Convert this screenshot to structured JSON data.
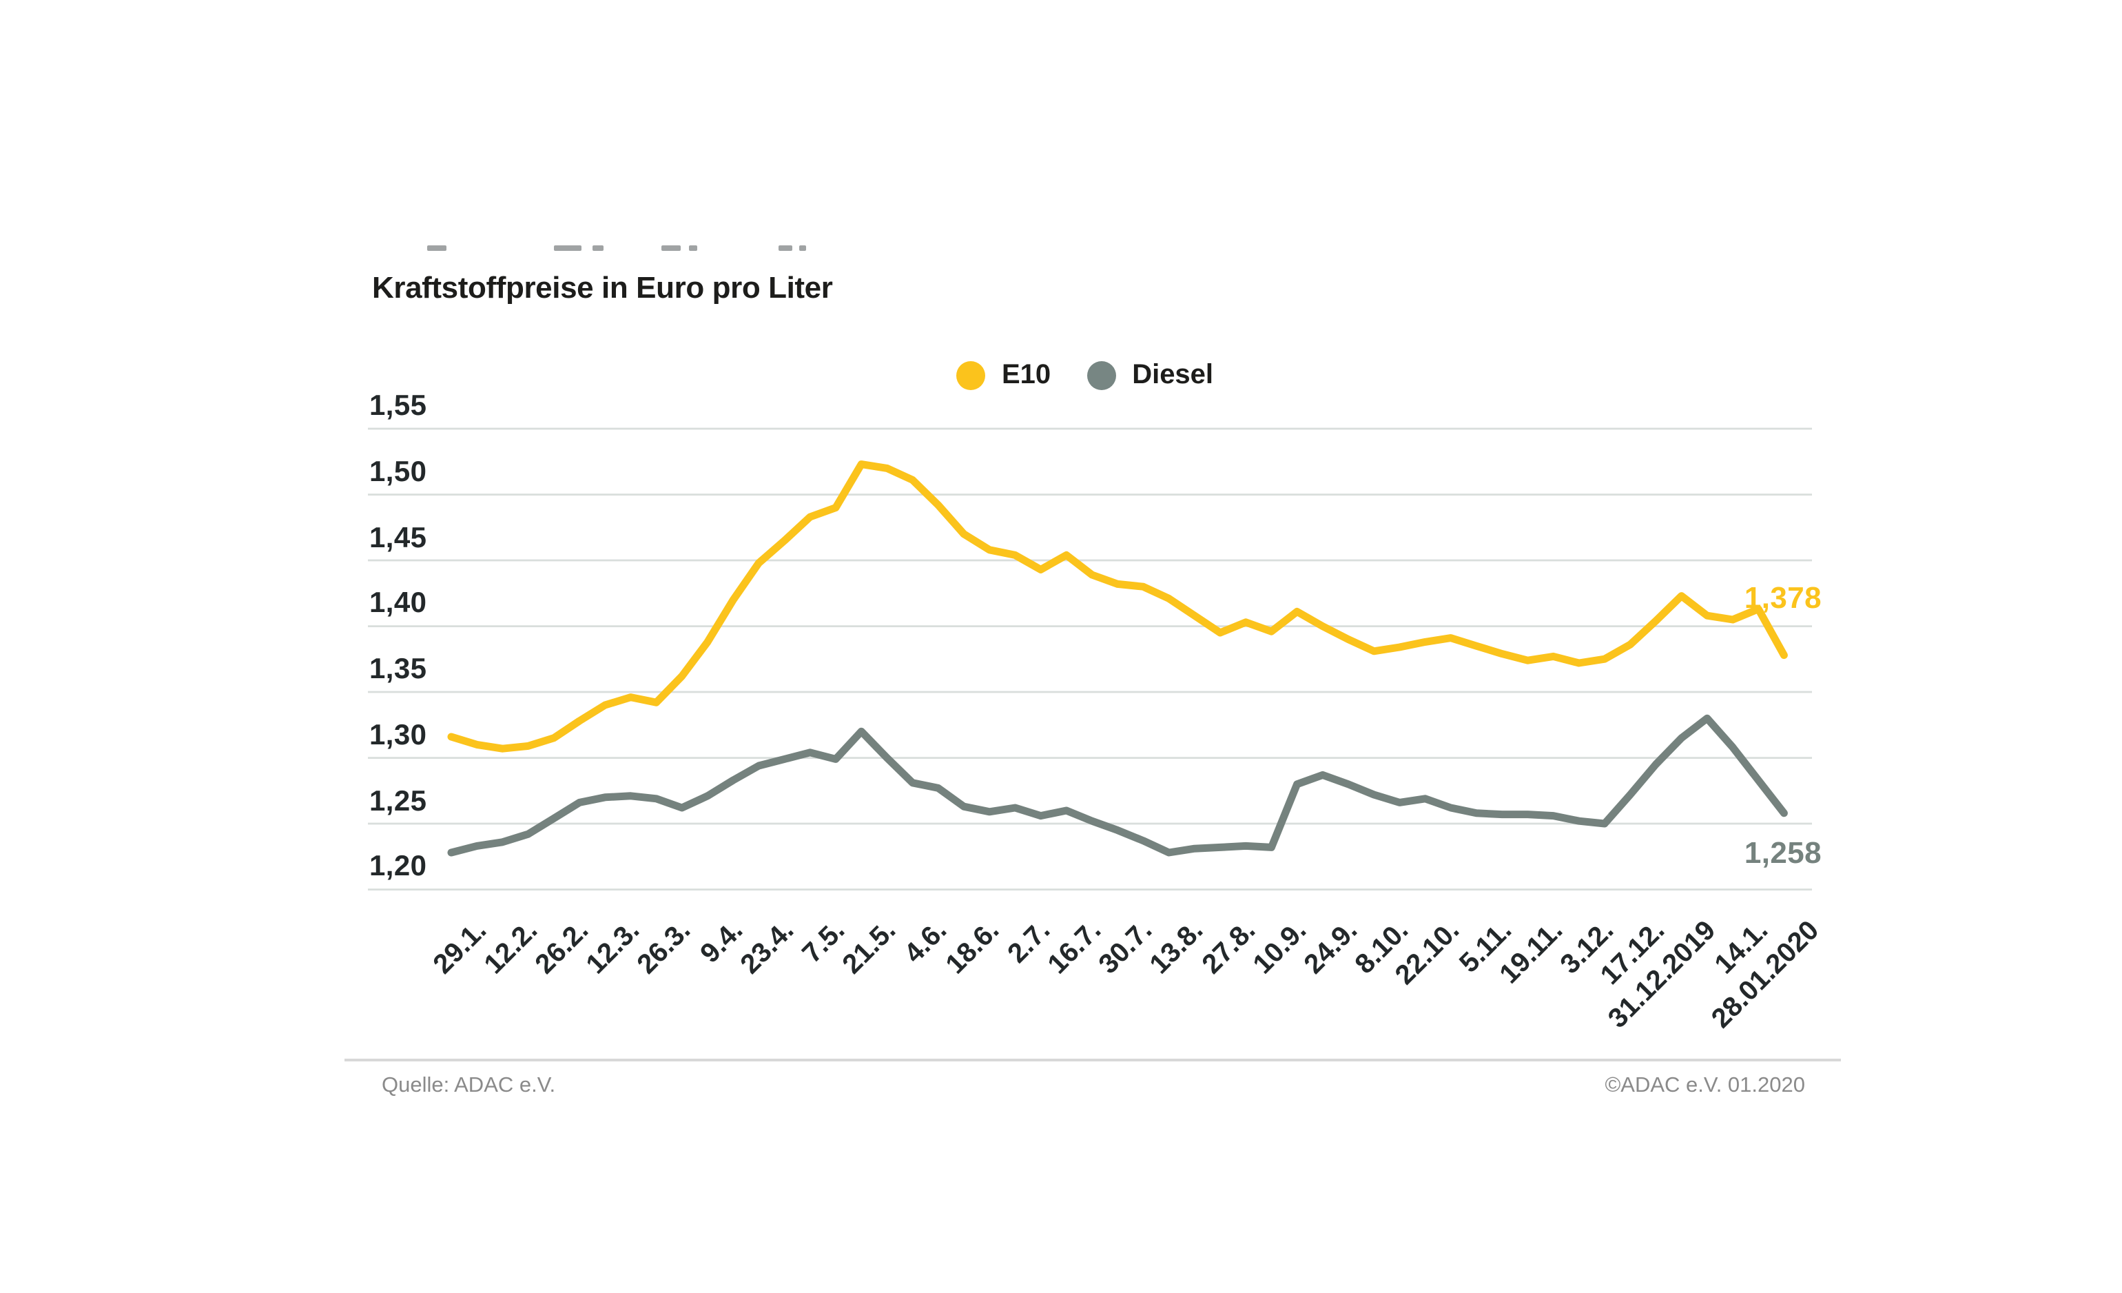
{
  "page": {
    "title": "Kraftstoffpreise in Euro pro Liter"
  },
  "legend": {
    "items": [
      {
        "label": "E10",
        "color": "#fbc31c"
      },
      {
        "label": "Diesel",
        "color": "#778683"
      }
    ]
  },
  "annotations": {
    "e10_end": "1,378",
    "diesel_end": "1,258"
  },
  "footer": {
    "source": "Quelle: ADAC e.V.",
    "copyright": "©ADAC e.V.  01.2020"
  },
  "chart_data": {
    "type": "line",
    "title": "Kraftstoffpreise in Euro pro Liter",
    "xlabel": "",
    "ylabel": "Euro pro Liter",
    "ylim": [
      1.2,
      1.55
    ],
    "grid": "horizontal",
    "legend_position": "top-center",
    "y_ticks": [
      {
        "label": "1,55",
        "value": 1.55
      },
      {
        "label": "1,50",
        "value": 1.5
      },
      {
        "label": "1,45",
        "value": 1.45
      },
      {
        "label": "1,40",
        "value": 1.4
      },
      {
        "label": "1,35",
        "value": 1.35
      },
      {
        "label": "1,30",
        "value": 1.3
      },
      {
        "label": "1,25",
        "value": 1.25
      },
      {
        "label": "1,20",
        "value": 1.2
      }
    ],
    "x_tick_labels": [
      "29.1.",
      "12.2.",
      "26.2.",
      "12.3.",
      "26.3.",
      "9.4.",
      "23.4.",
      "7.5.",
      "21.5.",
      "4.6.",
      "18.6.",
      "2.7.",
      "16.7.",
      "30.7.",
      "13.8.",
      "27.8.",
      "10.9.",
      "24.9.",
      "8.10.",
      "22.10.",
      "5.11.",
      "19.11.",
      "3.12.",
      "17.12.",
      "31.12.2019",
      "14.1.",
      "28.01.2020"
    ],
    "points_per_tick": 2,
    "series": [
      {
        "name": "E10",
        "color": "#fbc31c",
        "end_label": "1,378",
        "values": [
          1.316,
          1.31,
          1.307,
          1.309,
          1.315,
          1.328,
          1.34,
          1.346,
          1.342,
          1.362,
          1.388,
          1.42,
          1.448,
          1.465,
          1.483,
          1.49,
          1.523,
          1.52,
          1.511,
          1.492,
          1.47,
          1.458,
          1.454,
          1.443,
          1.454,
          1.439,
          1.432,
          1.43,
          1.421,
          1.408,
          1.395,
          1.403,
          1.396,
          1.411,
          1.4,
          1.39,
          1.381,
          1.384,
          1.388,
          1.391,
          1.385,
          1.379,
          1.374,
          1.377,
          1.372,
          1.375,
          1.386,
          1.404,
          1.423,
          1.408,
          1.405,
          1.413,
          1.378
        ]
      },
      {
        "name": "Diesel",
        "color": "#75827e",
        "end_label": "1,258",
        "values": [
          1.228,
          1.233,
          1.236,
          1.242,
          1.254,
          1.266,
          1.27,
          1.271,
          1.269,
          1.262,
          1.271,
          1.283,
          1.294,
          1.299,
          1.304,
          1.299,
          1.32,
          1.3,
          1.281,
          1.277,
          1.263,
          1.259,
          1.262,
          1.256,
          1.26,
          1.252,
          1.245,
          1.237,
          1.228,
          1.231,
          1.232,
          1.233,
          1.232,
          1.28,
          1.287,
          1.28,
          1.272,
          1.266,
          1.269,
          1.262,
          1.258,
          1.257,
          1.257,
          1.256,
          1.252,
          1.25,
          1.272,
          1.295,
          1.315,
          1.33,
          1.308,
          1.283,
          1.258
        ]
      }
    ]
  }
}
